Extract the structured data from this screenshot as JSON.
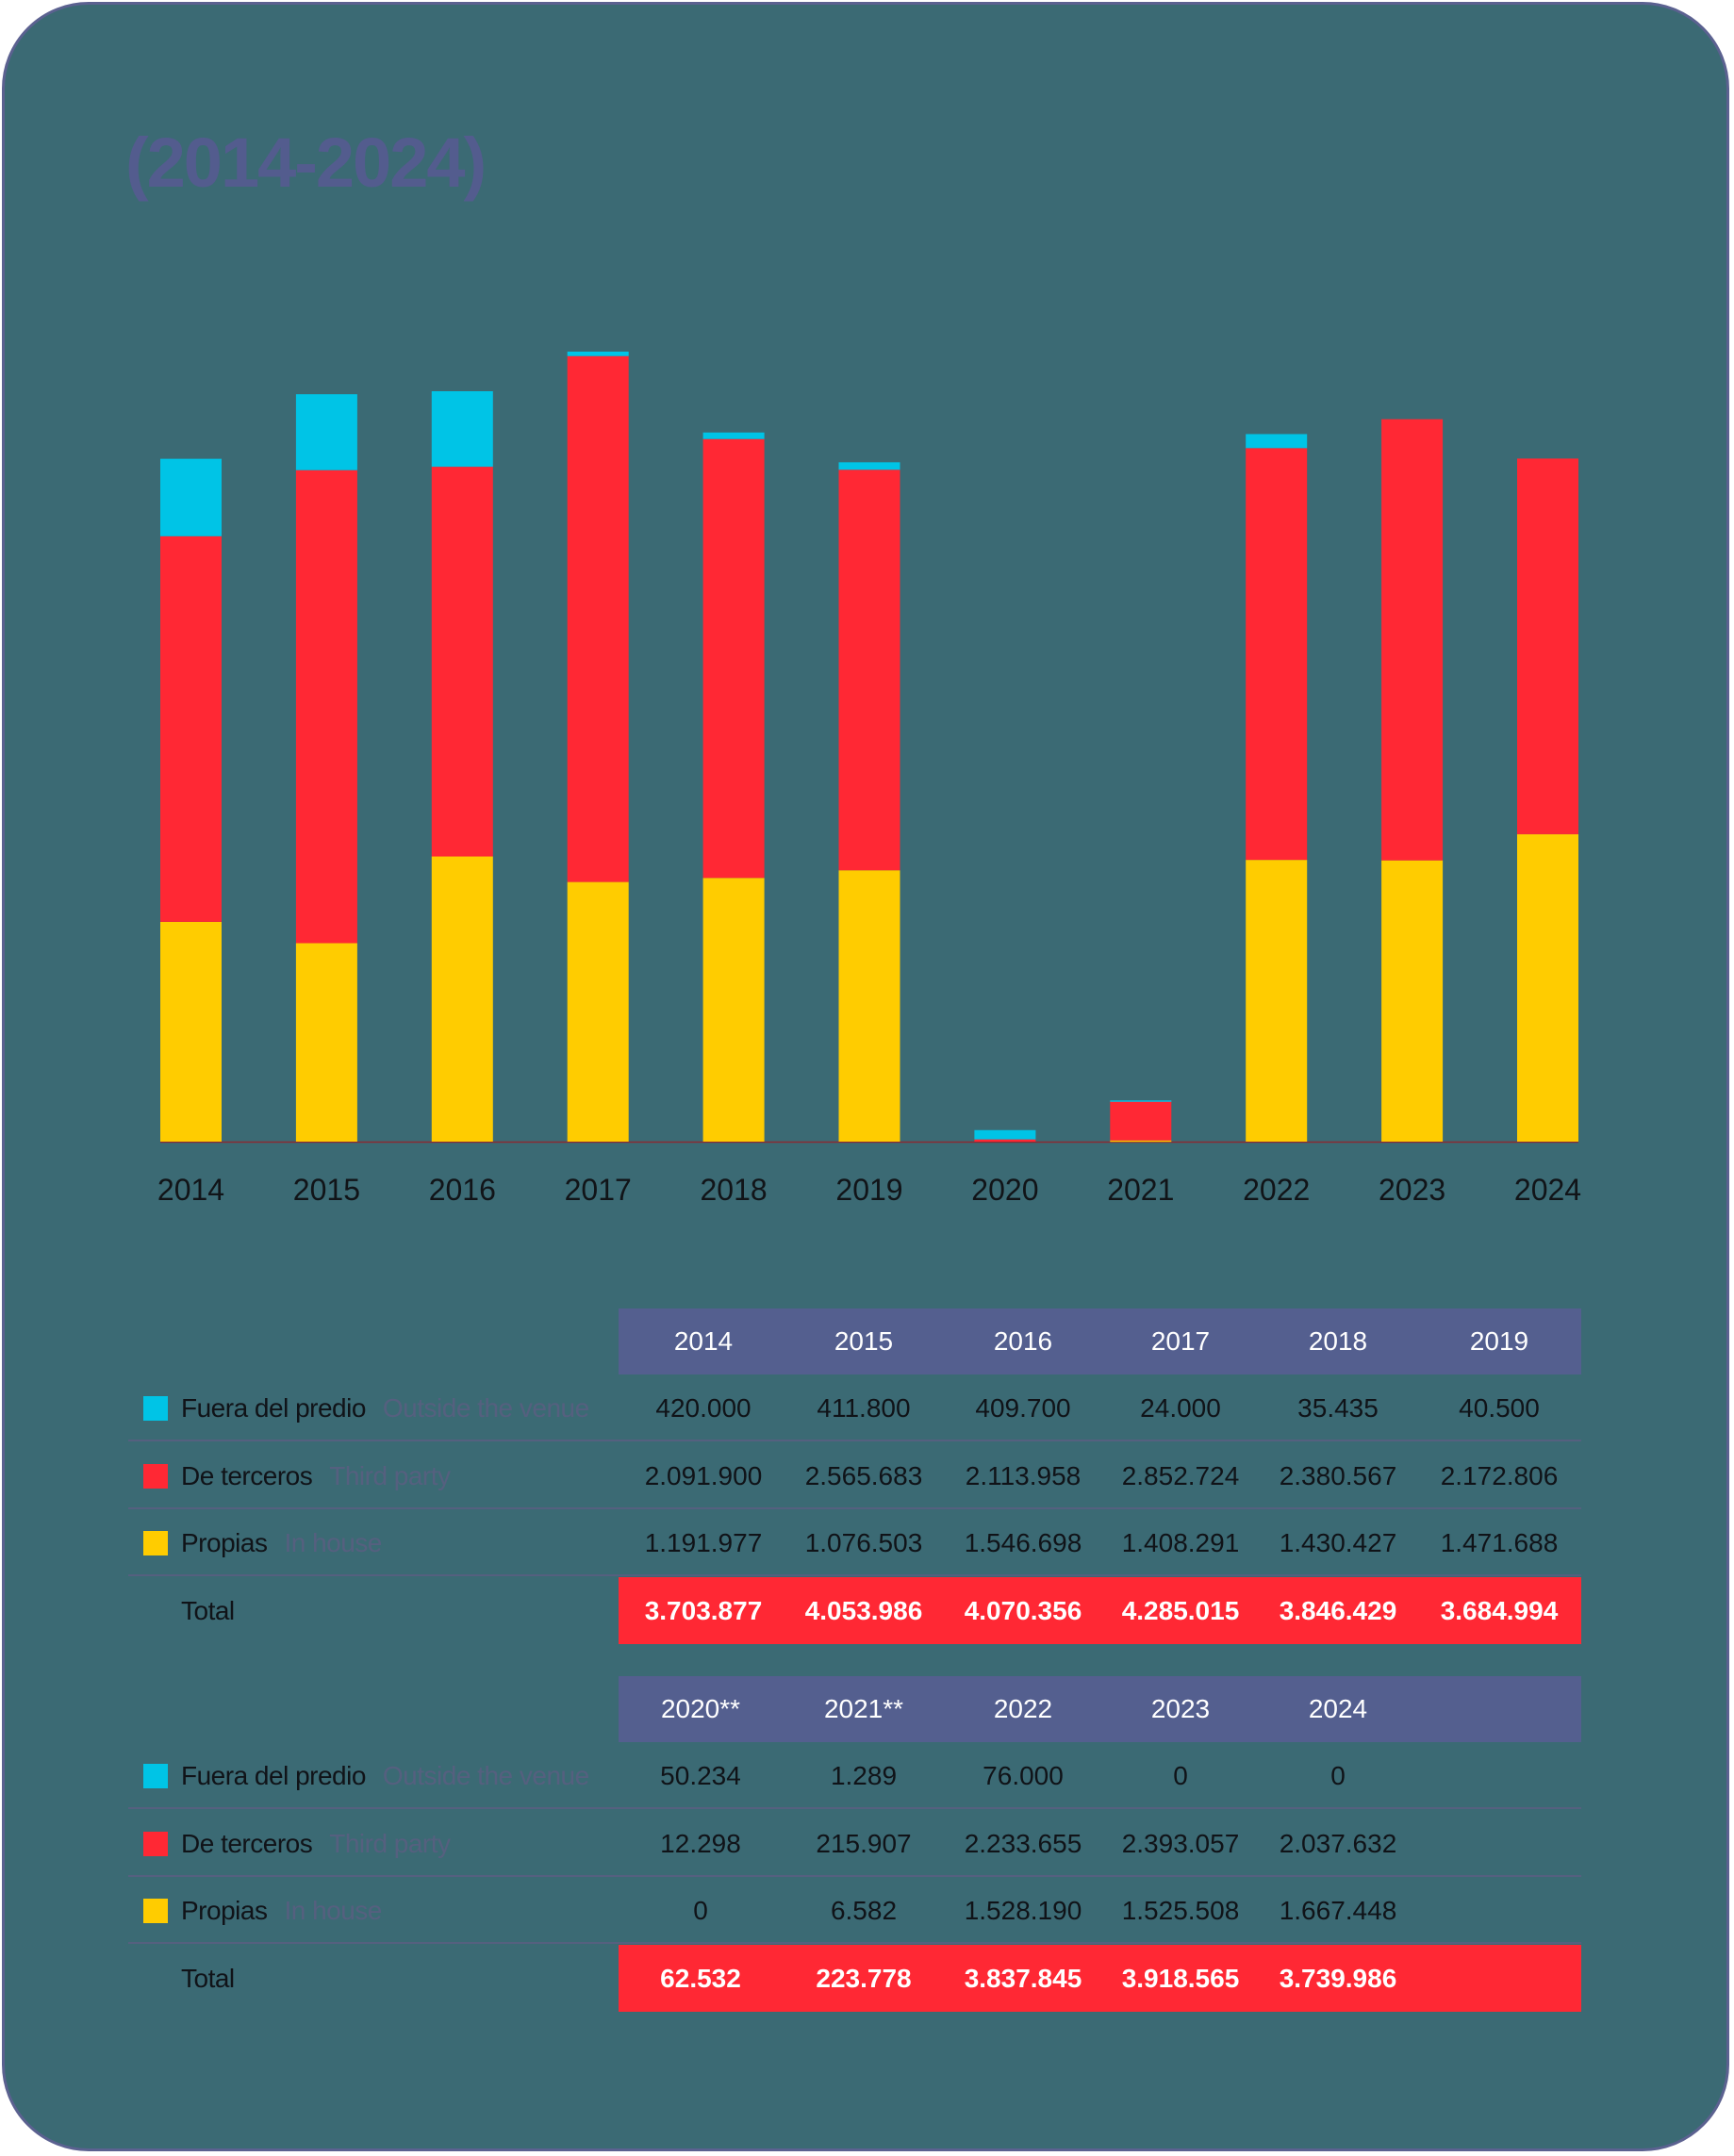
{
  "title": "(2014-2024)",
  "colors": {
    "outside": "#00c4e6",
    "third": "#ff2834",
    "inhouse": "#ffcc00",
    "total_bg": "#ff2834",
    "header_bg": "#545f8f"
  },
  "rows": {
    "outside": {
      "label": "Fuera del predio",
      "sub": "Outside the venue"
    },
    "third": {
      "label": "De terceros",
      "sub": "Third party"
    },
    "inhouse": {
      "label": "Propias",
      "sub": "In house"
    },
    "total": {
      "label": "Total"
    }
  },
  "table1": {
    "years": [
      "2014",
      "2015",
      "2016",
      "2017",
      "2018",
      "2019"
    ],
    "outside": [
      "420.000",
      "411.800",
      "409.700",
      "24.000",
      "35.435",
      "40.500"
    ],
    "third": [
      "2.091.900",
      "2.565.683",
      "2.113.958",
      "2.852.724",
      "2.380.567",
      "2.172.806"
    ],
    "inhouse": [
      "1.191.977",
      "1.076.503",
      "1.546.698",
      "1.408.291",
      "1.430.427",
      "1.471.688"
    ],
    "total": [
      "3.703.877",
      "4.053.986",
      "4.070.356",
      "4.285.015",
      "3.846.429",
      "3.684.994"
    ]
  },
  "table2": {
    "years": [
      "2020**",
      "2021**",
      "2022",
      "2023",
      "2024"
    ],
    "outside": [
      "50.234",
      "1.289",
      "76.000",
      "0",
      "0"
    ],
    "third": [
      "12.298",
      "215.907",
      "2.233.655",
      "2.393.057",
      "2.037.632"
    ],
    "inhouse": [
      "0",
      "6.582",
      "1.528.190",
      "1.525.508",
      "1.667.448"
    ],
    "total": [
      "62.532",
      "223.778",
      "3.837.845",
      "3.918.565",
      "3.739.986"
    ]
  },
  "chart_data": {
    "type": "bar",
    "stacked": true,
    "categories": [
      "2014",
      "2015",
      "2016",
      "2017",
      "2018",
      "2019",
      "2020",
      "2021",
      "2022",
      "2023",
      "2024"
    ],
    "series": [
      {
        "name": "Propias",
        "color": "#ffcc00",
        "values": [
          1191977,
          1076503,
          1546698,
          1408291,
          1430427,
          1471688,
          0,
          6582,
          1528190,
          1525508,
          1667448
        ]
      },
      {
        "name": "De terceros",
        "color": "#ff2834",
        "values": [
          2091900,
          2565683,
          2113958,
          2852724,
          2380567,
          2172806,
          12298,
          215907,
          2233655,
          2393057,
          2037632
        ]
      },
      {
        "name": "Fuera del predio",
        "color": "#00c4e6",
        "values": [
          420000,
          411800,
          409700,
          24000,
          35435,
          40500,
          50234,
          1289,
          76000,
          0,
          0
        ]
      }
    ],
    "title": "",
    "xlabel": "",
    "ylabel": "",
    "ylim": [
      0,
      4285015
    ]
  }
}
